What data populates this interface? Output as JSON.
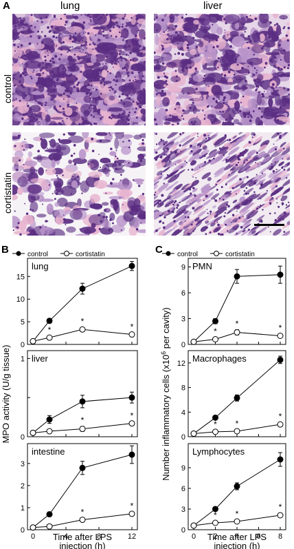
{
  "panel_A": {
    "letter": "A",
    "columns": [
      "lung",
      "liver"
    ],
    "rows": [
      "control",
      "cortistatin"
    ],
    "stain_colors": {
      "dark": "#5a2d82",
      "light": "#b792c9",
      "pink": "#e7b3cf",
      "bg": "#f3eef3"
    }
  },
  "panel_B": {
    "letter": "B",
    "legend": {
      "control": "control",
      "cortistatin": "cortistatin"
    },
    "ylabel": "MPO activity (U/g tissue)",
    "xlabel_line1": "Time after LPS",
    "xlabel_line2": "injection (h)"
  },
  "panel_C": {
    "letter": "C",
    "legend": {
      "control": "control",
      "cortistatin": "cortistatin"
    },
    "ylabel": "Number inflammatory cells (x10",
    "ylabel_sup": "6",
    "ylabel_tail": " per cavity)",
    "xlabel_line1": "Time after LPS",
    "xlabel_line2": "injection (h)"
  },
  "chart_data": [
    {
      "type": "line",
      "panel": "B",
      "title": "lung",
      "x": [
        0,
        2,
        6,
        12
      ],
      "xlim": [
        0,
        12
      ],
      "xticks": [
        0,
        4,
        8,
        12
      ],
      "ylim": [
        0,
        19
      ],
      "yticks": [
        0,
        5,
        10,
        15
      ],
      "series": [
        {
          "name": "control",
          "values": [
            0.7,
            5.2,
            12.3,
            17.3
          ],
          "errors": [
            0.2,
            0.5,
            1.2,
            1.0
          ]
        },
        {
          "name": "cortistatin",
          "values": [
            0.7,
            1.5,
            3.3,
            2.2
          ],
          "errors": [
            0.2,
            0.3,
            0.4,
            0.3
          ],
          "significant": [
            false,
            true,
            true,
            true
          ]
        }
      ]
    },
    {
      "type": "line",
      "panel": "B",
      "title": "liver",
      "x": [
        0,
        2,
        6,
        12
      ],
      "xlim": [
        0,
        12
      ],
      "xticks": [
        0,
        4,
        8,
        12
      ],
      "ylim": [
        0,
        1.1
      ],
      "yticks": [
        0,
        0.5,
        1
      ],
      "yticklabels": [
        "0",
        "",
        "1"
      ],
      "series": [
        {
          "name": "control",
          "values": [
            0.05,
            0.22,
            0.45,
            0.5
          ],
          "errors": [
            0.02,
            0.05,
            0.08,
            0.07
          ]
        },
        {
          "name": "cortistatin",
          "values": [
            0.05,
            0.07,
            0.1,
            0.17
          ],
          "errors": [
            0.01,
            0.02,
            0.03,
            0.02
          ],
          "significant": [
            false,
            false,
            true,
            true
          ]
        }
      ]
    },
    {
      "type": "line",
      "panel": "B",
      "title": "intestine",
      "x": [
        0,
        2,
        6,
        12
      ],
      "xlim": [
        0,
        12
      ],
      "xticks": [
        0,
        4,
        8,
        12
      ],
      "ylim": [
        0,
        3.9
      ],
      "yticks": [
        0,
        1,
        2,
        3
      ],
      "series": [
        {
          "name": "control",
          "values": [
            0.1,
            0.7,
            2.8,
            3.4
          ],
          "errors": [
            0.05,
            0.1,
            0.3,
            0.4
          ]
        },
        {
          "name": "cortistatin",
          "values": [
            0.1,
            0.15,
            0.45,
            0.72
          ],
          "errors": [
            0.03,
            0.05,
            0.07,
            0.08
          ],
          "significant": [
            false,
            false,
            true,
            true
          ]
        }
      ]
    },
    {
      "type": "line",
      "panel": "C",
      "title": "PMN",
      "x": [
        0,
        2,
        4,
        8
      ],
      "xlim": [
        0,
        8
      ],
      "xticks": [
        0,
        2,
        4,
        6,
        8
      ],
      "ylim": [
        0,
        10
      ],
      "yticks": [
        0,
        3,
        6,
        9
      ],
      "series": [
        {
          "name": "control",
          "values": [
            0.3,
            2.7,
            7.9,
            8.1
          ],
          "errors": [
            0.1,
            0.3,
            0.8,
            1.0
          ]
        },
        {
          "name": "cortistatin",
          "values": [
            0.3,
            0.6,
            1.4,
            1.0
          ],
          "errors": [
            0.1,
            0.2,
            0.3,
            0.2
          ],
          "significant": [
            false,
            true,
            true,
            true
          ]
        }
      ]
    },
    {
      "type": "line",
      "panel": "C",
      "title": "Macrophages",
      "x": [
        0,
        2,
        4,
        8
      ],
      "xlim": [
        0,
        8
      ],
      "xticks": [
        0,
        2,
        4,
        6,
        8
      ],
      "ylim": [
        0,
        14
      ],
      "yticks": [
        0,
        4,
        8,
        12
      ],
      "series": [
        {
          "name": "control",
          "values": [
            0.5,
            3.1,
            6.3,
            12.5
          ],
          "errors": [
            0.2,
            0.3,
            0.5,
            0.6
          ]
        },
        {
          "name": "cortistatin",
          "values": [
            0.5,
            0.8,
            0.9,
            2.0
          ],
          "errors": [
            0.1,
            0.2,
            0.2,
            0.3
          ],
          "significant": [
            false,
            true,
            true,
            true
          ]
        }
      ]
    },
    {
      "type": "line",
      "panel": "C",
      "title": "Lymphocytes",
      "x": [
        0,
        2,
        4,
        8
      ],
      "xlim": [
        0,
        8
      ],
      "xticks": [
        0,
        2,
        4,
        6,
        8
      ],
      "ylim": [
        0,
        12.5
      ],
      "yticks": [
        0,
        3,
        6,
        9
      ],
      "series": [
        {
          "name": "control",
          "values": [
            0.6,
            3.0,
            6.3,
            10.2
          ],
          "errors": [
            0.2,
            0.3,
            0.5,
            1.0
          ]
        },
        {
          "name": "cortistatin",
          "values": [
            0.6,
            1.0,
            1.2,
            2.1
          ],
          "errors": [
            0.1,
            0.2,
            0.2,
            0.3
          ],
          "significant": [
            false,
            true,
            true,
            true
          ]
        }
      ]
    }
  ]
}
